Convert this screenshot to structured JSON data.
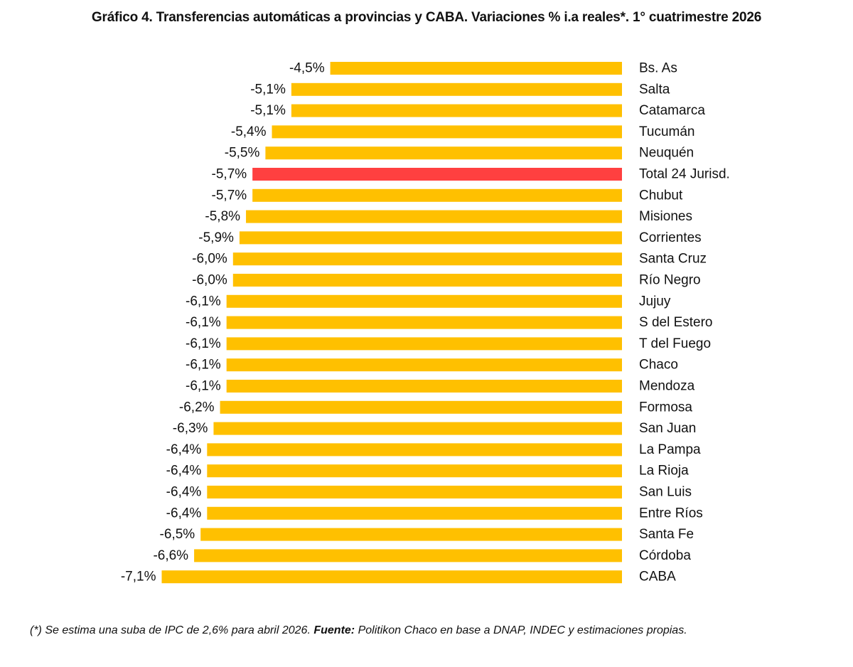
{
  "title": "Gráfico 4. Transferencias automáticas a provincias y CABA. Variaciones % i.a reales*. 1° cuatrimestre 2026",
  "footnote": {
    "note": "(*) Se estima una suba de IPC de 2,6% para abril 2026.",
    "source_label": "Fuente:",
    "source_text": "Politikon Chaco en base a DNAP, INDEC y estimaciones propias."
  },
  "colors": {
    "bar": "#FFC000",
    "highlight": "#FF4040"
  },
  "chart_data": {
    "type": "bar",
    "orientation": "horizontal",
    "title": "Gráfico 4. Transferencias automáticas a provincias y CABA. Variaciones % i.a reales*. 1° cuatrimestre 2026",
    "xlabel": "",
    "ylabel": "",
    "grid": false,
    "legend": "none",
    "highlight_category": "Total 24 Jurisd.",
    "categories": [
      "Bs. As",
      "Salta",
      "Catamarca",
      "Tucumán",
      "Neuquén",
      "Total 24 Jurisd.",
      "Chubut",
      "Misiones",
      "Corrientes",
      "Santa Cruz",
      "Río Negro",
      "Jujuy",
      "S del Estero",
      "T del Fuego",
      "Chaco",
      "Mendoza",
      "Formosa",
      "San Juan",
      "La Pampa",
      "La Rioja",
      "San Luis",
      "Entre Ríos",
      "Santa Fe",
      "Córdoba",
      "CABA"
    ],
    "values": [
      -4.5,
      -5.1,
      -5.1,
      -5.4,
      -5.5,
      -5.7,
      -5.7,
      -5.8,
      -5.9,
      -6.0,
      -6.0,
      -6.1,
      -6.1,
      -6.1,
      -6.1,
      -6.1,
      -6.2,
      -6.3,
      -6.4,
      -6.4,
      -6.4,
      -6.4,
      -6.5,
      -6.6,
      -7.1
    ],
    "value_labels": [
      "-4,5%",
      "-5,1%",
      "-5,1%",
      "-5,4%",
      "-5,5%",
      "-5,7%",
      "-5,7%",
      "-5,8%",
      "-5,9%",
      "-6,0%",
      "-6,0%",
      "-6,1%",
      "-6,1%",
      "-6,1%",
      "-6,1%",
      "-6,1%",
      "-6,2%",
      "-6,3%",
      "-6,4%",
      "-6,4%",
      "-6,4%",
      "-6,4%",
      "-6,5%",
      "-6,6%",
      "-7,1%"
    ]
  }
}
